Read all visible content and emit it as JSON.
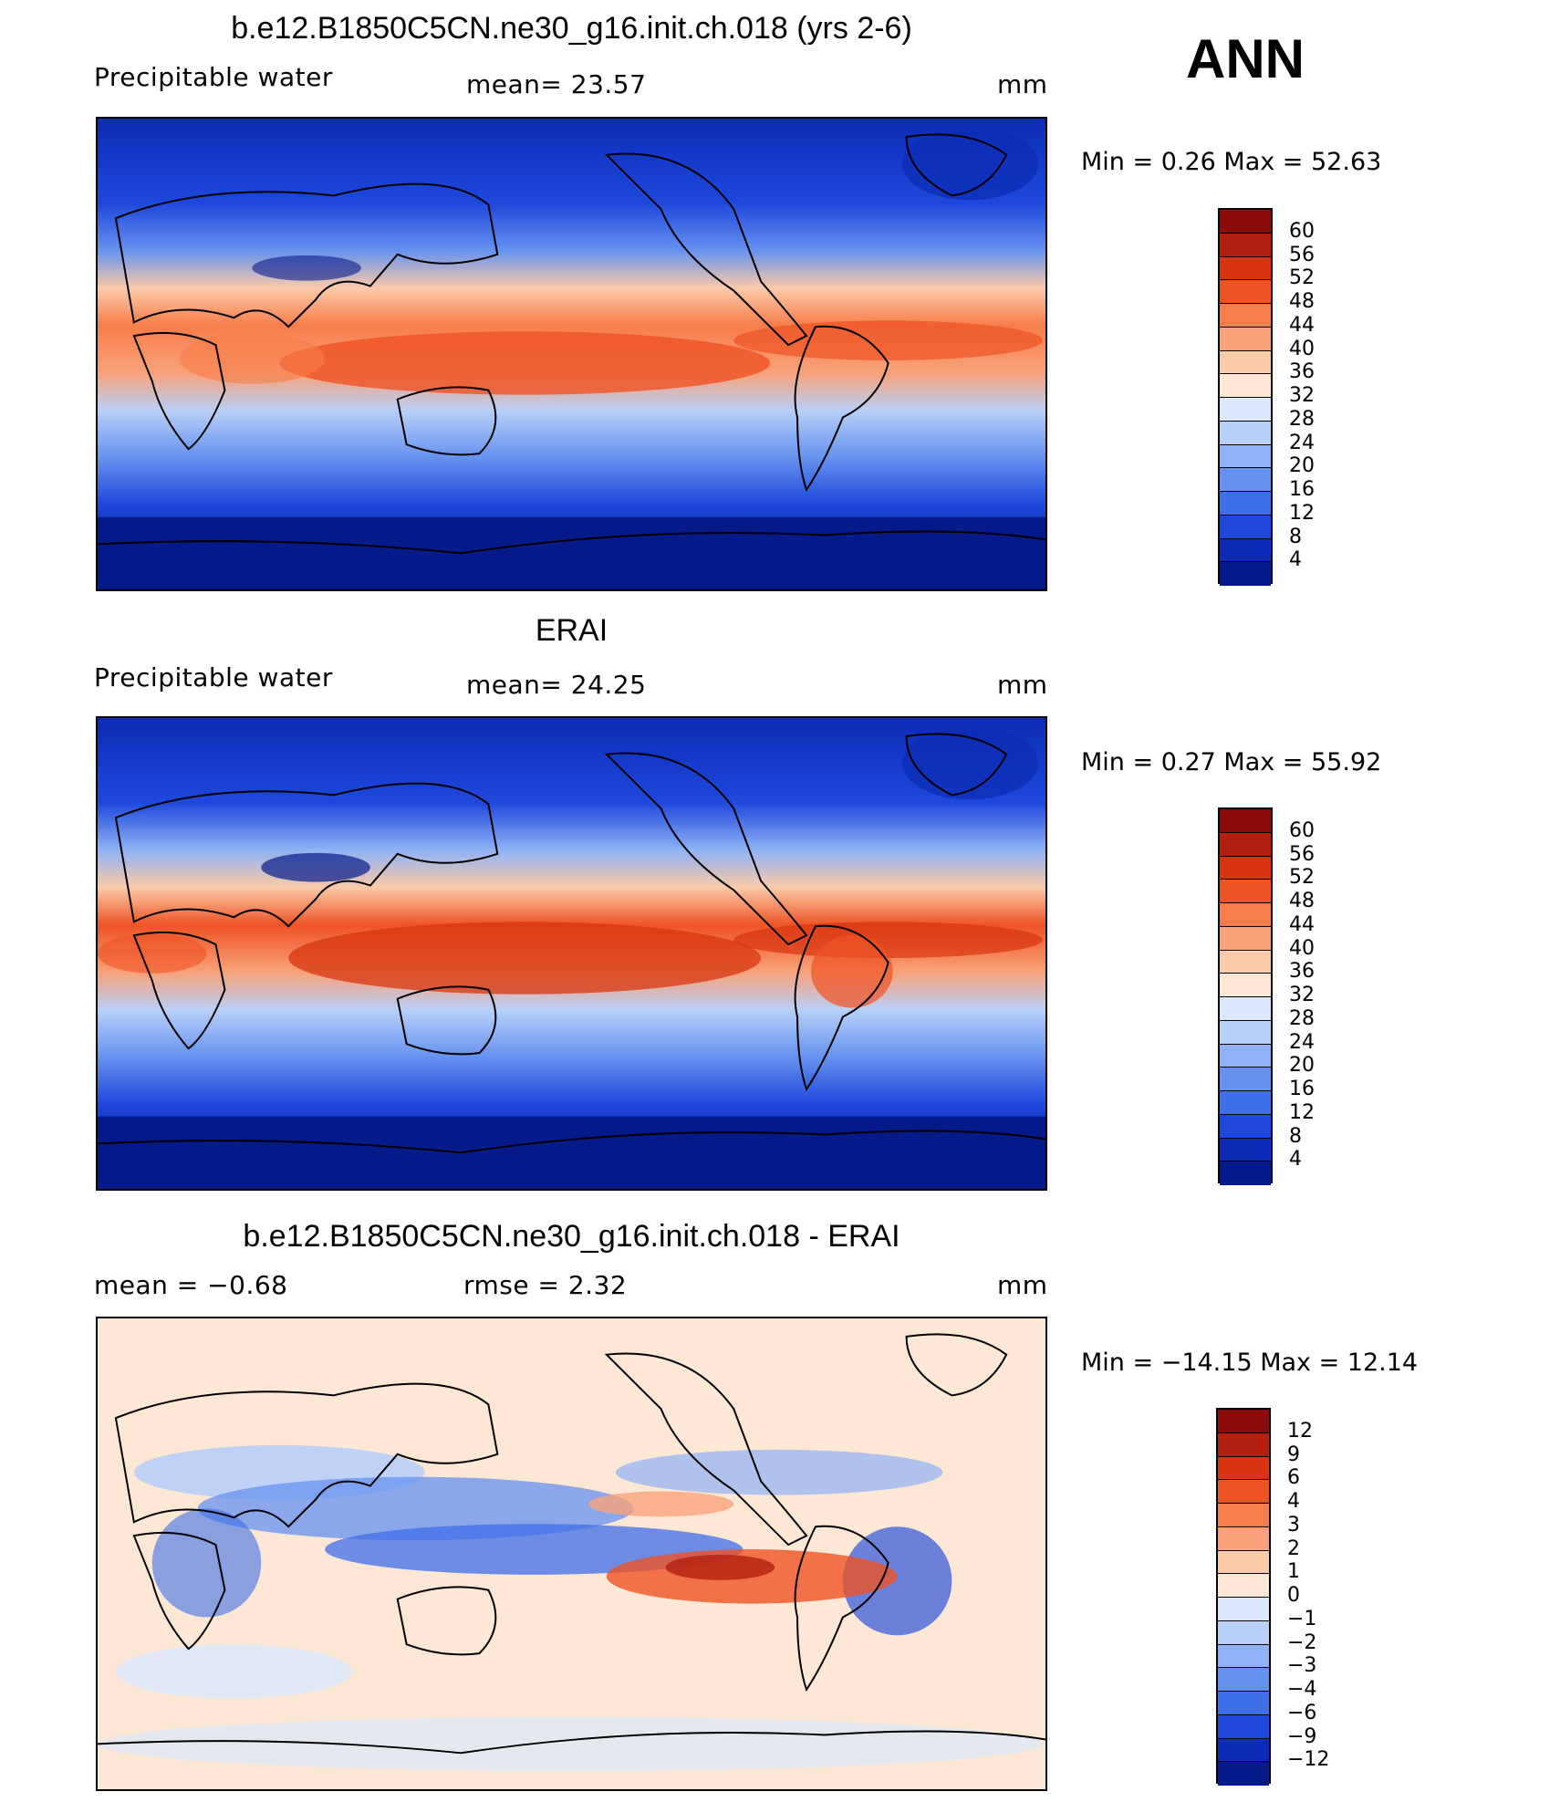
{
  "season": "ANN",
  "panels": [
    {
      "title": "b.e12.B1850C5CN.ne30_g16.init.ch.018 (yrs 2-6)",
      "left_label": "Precipitable  water",
      "mid_label": "mean=   23.57",
      "right_label": "mm",
      "minmax": "Min  =     0.26  Max  =    52.63",
      "colorbar_labels": [
        "60",
        "56",
        "52",
        "48",
        "44",
        "40",
        "36",
        "32",
        "28",
        "24",
        "20",
        "16",
        "12",
        "8",
        "4"
      ],
      "colorbar_colors": [
        "#8b0a0a",
        "#b3200f",
        "#d7350f",
        "#ee5324",
        "#f77d4a",
        "#f9a27a",
        "#fbcaa9",
        "#fde8d5",
        "#dbe8fb",
        "#b8cff8",
        "#8fb2f5",
        "#6692ef",
        "#3e6ee8",
        "#1e48dc",
        "#0c2cb5",
        "#061a8a"
      ]
    },
    {
      "title": "ERAI",
      "left_label": "Precipitable  water",
      "mid_label": "mean=   24.25",
      "right_label": "mm",
      "minmax": "Min  =     0.27  Max  =    55.92",
      "colorbar_labels": [
        "60",
        "56",
        "52",
        "48",
        "44",
        "40",
        "36",
        "32",
        "28",
        "24",
        "20",
        "16",
        "12",
        "8",
        "4"
      ],
      "colorbar_colors": [
        "#8b0a0a",
        "#b3200f",
        "#d7350f",
        "#ee5324",
        "#f77d4a",
        "#f9a27a",
        "#fbcaa9",
        "#fde8d5",
        "#dbe8fb",
        "#b8cff8",
        "#8fb2f5",
        "#6692ef",
        "#3e6ee8",
        "#1e48dc",
        "#0c2cb5",
        "#061a8a"
      ]
    },
    {
      "title": "b.e12.B1850C5CN.ne30_g16.init.ch.018 - ERAI",
      "left_label": "mean  =   −0.68",
      "mid_label": "rmse  =     2.32",
      "right_label": "mm",
      "minmax": "Min  = −14.15  Max  =   12.14",
      "colorbar_labels": [
        "12",
        "9",
        "6",
        "4",
        "3",
        "2",
        "1",
        "0",
        "−1",
        "−2",
        "−3",
        "−4",
        "−6",
        "−9",
        "−12"
      ],
      "colorbar_colors": [
        "#8b0a0a",
        "#b3200f",
        "#d7350f",
        "#ee5324",
        "#f77d4a",
        "#f9a27a",
        "#fbcaa9",
        "#fde8d5",
        "#dbe8fb",
        "#b8cff8",
        "#8fb2f5",
        "#6692ef",
        "#3e6ee8",
        "#1e48dc",
        "#0c2cb5",
        "#061a8a"
      ]
    }
  ]
}
